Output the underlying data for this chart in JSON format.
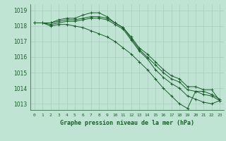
{
  "title": "Graphe pression niveau de la mer (hPa)",
  "background_color": "#c0e4d4",
  "grid_color": "#a8ccbc",
  "line_color": "#1a5c2a",
  "x_labels": [
    "0",
    "1",
    "2",
    "3",
    "4",
    "5",
    "6",
    "7",
    "8",
    "9",
    "10",
    "11",
    "12",
    "13",
    "14",
    "15",
    "16",
    "17",
    "18",
    "19",
    "20",
    "21",
    "22",
    "23"
  ],
  "ylim": [
    1012.6,
    1019.4
  ],
  "yticks": [
    1013,
    1014,
    1015,
    1016,
    1017,
    1018,
    1019
  ],
  "series1": [
    1018.2,
    1018.2,
    1018.2,
    1018.3,
    1018.4,
    1018.4,
    1018.5,
    1018.6,
    1018.6,
    1018.5,
    1018.2,
    1017.9,
    1017.3,
    1016.6,
    1016.2,
    1015.7,
    1015.2,
    1014.8,
    1014.6,
    1014.1,
    1014.1,
    1013.9,
    1013.9,
    1013.2
  ],
  "series2": [
    1018.2,
    1018.2,
    1018.2,
    1018.4,
    1018.5,
    1018.5,
    1018.7,
    1018.85,
    1018.85,
    1018.6,
    1018.2,
    1017.9,
    1017.2,
    1016.5,
    1016.0,
    1015.5,
    1015.0,
    1014.6,
    1014.4,
    1013.9,
    1013.8,
    1013.6,
    1013.5,
    1013.2
  ],
  "series3": [
    1018.2,
    1018.2,
    1018.1,
    1018.2,
    1018.3,
    1018.3,
    1018.4,
    1018.5,
    1018.5,
    1018.4,
    1018.1,
    1017.8,
    1017.1,
    1016.4,
    1015.9,
    1015.2,
    1014.7,
    1014.3,
    1014.0,
    1013.5,
    1013.3,
    1013.1,
    1013.0,
    1013.2
  ],
  "series4": [
    1018.2,
    1018.2,
    1018.0,
    1018.1,
    1018.1,
    1018.0,
    1017.9,
    1017.7,
    1017.5,
    1017.3,
    1017.0,
    1016.6,
    1016.2,
    1015.7,
    1015.2,
    1014.6,
    1014.0,
    1013.5,
    1013.0,
    1012.7,
    1013.8,
    1013.8,
    1013.6,
    1013.3
  ]
}
